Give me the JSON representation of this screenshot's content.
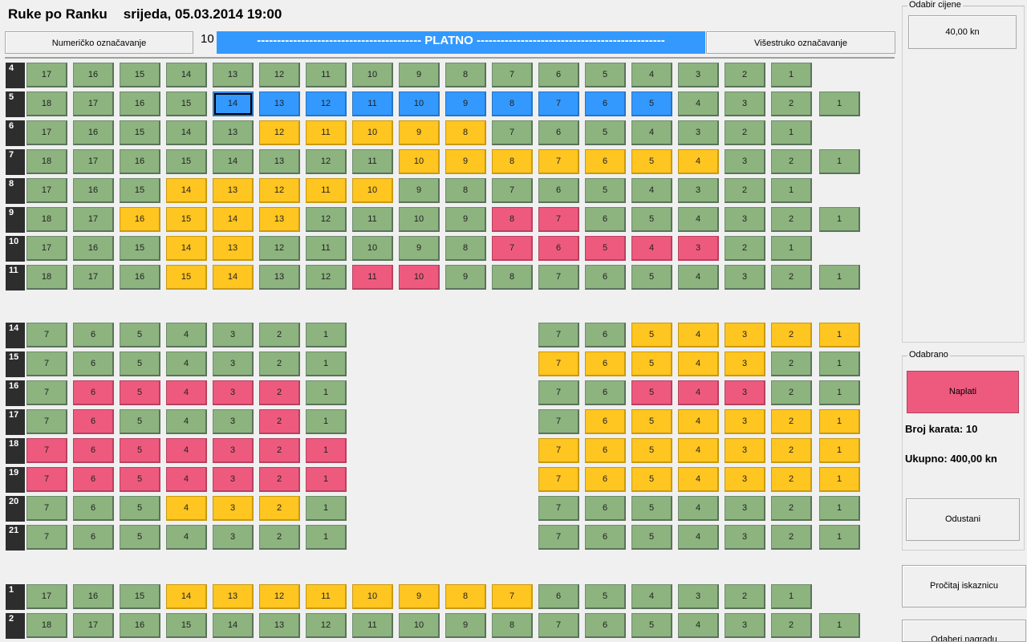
{
  "header": {
    "title": "Ruke po Ranku",
    "datetime": "srijeda, 05.03.2014 19:00"
  },
  "toolbar": {
    "numeric_label": "Numeričko označavanje",
    "counter": "10",
    "screen_label": "----------------------------------------- PLATNO -----------------------------------------------",
    "multi_label": "Višestruko označavanje"
  },
  "hall": {
    "rows": [
      {
        "label": "4",
        "seats": [
          [
            17,
            "free"
          ],
          [
            16,
            "free"
          ],
          [
            15,
            "free"
          ],
          [
            14,
            "free"
          ],
          [
            13,
            "free"
          ],
          [
            12,
            "free"
          ],
          [
            11,
            "free"
          ],
          [
            10,
            "free"
          ],
          [
            9,
            "free"
          ],
          [
            8,
            "free"
          ],
          [
            7,
            "free"
          ],
          [
            6,
            "free"
          ],
          [
            5,
            "free"
          ],
          [
            4,
            "free"
          ],
          [
            3,
            "free"
          ],
          [
            2,
            "free"
          ],
          [
            1,
            "free"
          ]
        ]
      },
      {
        "label": "5",
        "seats": [
          [
            18,
            "free"
          ],
          [
            17,
            "free"
          ],
          [
            16,
            "free"
          ],
          [
            15,
            "free"
          ],
          [
            14,
            "sel-cur"
          ],
          [
            13,
            "sel"
          ],
          [
            12,
            "sel"
          ],
          [
            11,
            "sel"
          ],
          [
            10,
            "sel"
          ],
          [
            9,
            "sel"
          ],
          [
            8,
            "sel"
          ],
          [
            7,
            "sel"
          ],
          [
            6,
            "sel"
          ],
          [
            5,
            "sel"
          ],
          [
            4,
            "free"
          ],
          [
            3,
            "free"
          ],
          [
            2,
            "free"
          ],
          [
            1,
            "free"
          ]
        ]
      },
      {
        "label": "6",
        "seats": [
          [
            17,
            "free"
          ],
          [
            16,
            "free"
          ],
          [
            15,
            "free"
          ],
          [
            14,
            "free"
          ],
          [
            13,
            "free"
          ],
          [
            12,
            "res"
          ],
          [
            11,
            "res"
          ],
          [
            10,
            "res"
          ],
          [
            9,
            "res"
          ],
          [
            8,
            "res"
          ],
          [
            7,
            "free"
          ],
          [
            6,
            "free"
          ],
          [
            5,
            "free"
          ],
          [
            4,
            "free"
          ],
          [
            3,
            "free"
          ],
          [
            2,
            "free"
          ],
          [
            1,
            "free"
          ]
        ]
      },
      {
        "label": "7",
        "seats": [
          [
            18,
            "free"
          ],
          [
            17,
            "free"
          ],
          [
            16,
            "free"
          ],
          [
            15,
            "free"
          ],
          [
            14,
            "free"
          ],
          [
            13,
            "free"
          ],
          [
            12,
            "free"
          ],
          [
            11,
            "free"
          ],
          [
            10,
            "res"
          ],
          [
            9,
            "res"
          ],
          [
            8,
            "res"
          ],
          [
            7,
            "res"
          ],
          [
            6,
            "res"
          ],
          [
            5,
            "res"
          ],
          [
            4,
            "res"
          ],
          [
            3,
            "free"
          ],
          [
            2,
            "free"
          ],
          [
            1,
            "free"
          ]
        ]
      },
      {
        "label": "8",
        "seats": [
          [
            17,
            "free"
          ],
          [
            16,
            "free"
          ],
          [
            15,
            "free"
          ],
          [
            14,
            "res"
          ],
          [
            13,
            "res"
          ],
          [
            12,
            "res"
          ],
          [
            11,
            "res"
          ],
          [
            10,
            "res"
          ],
          [
            9,
            "free"
          ],
          [
            8,
            "free"
          ],
          [
            7,
            "free"
          ],
          [
            6,
            "free"
          ],
          [
            5,
            "free"
          ],
          [
            4,
            "free"
          ],
          [
            3,
            "free"
          ],
          [
            2,
            "free"
          ],
          [
            1,
            "free"
          ]
        ]
      },
      {
        "label": "9",
        "seats": [
          [
            18,
            "free"
          ],
          [
            17,
            "free"
          ],
          [
            16,
            "res"
          ],
          [
            15,
            "res"
          ],
          [
            14,
            "res"
          ],
          [
            13,
            "res"
          ],
          [
            12,
            "free"
          ],
          [
            11,
            "free"
          ],
          [
            10,
            "free"
          ],
          [
            9,
            "free"
          ],
          [
            8,
            "sold"
          ],
          [
            7,
            "sold"
          ],
          [
            6,
            "free"
          ],
          [
            5,
            "free"
          ],
          [
            4,
            "free"
          ],
          [
            3,
            "free"
          ],
          [
            2,
            "free"
          ],
          [
            1,
            "free"
          ]
        ]
      },
      {
        "label": "10",
        "seats": [
          [
            17,
            "free"
          ],
          [
            16,
            "free"
          ],
          [
            15,
            "free"
          ],
          [
            14,
            "res"
          ],
          [
            13,
            "res"
          ],
          [
            12,
            "free"
          ],
          [
            11,
            "free"
          ],
          [
            10,
            "free"
          ],
          [
            9,
            "free"
          ],
          [
            8,
            "free"
          ],
          [
            7,
            "sold"
          ],
          [
            6,
            "sold"
          ],
          [
            5,
            "sold"
          ],
          [
            4,
            "sold"
          ],
          [
            3,
            "sold"
          ],
          [
            2,
            "free"
          ],
          [
            1,
            "free"
          ]
        ]
      },
      {
        "label": "11",
        "seats": [
          [
            18,
            "free"
          ],
          [
            17,
            "free"
          ],
          [
            16,
            "free"
          ],
          [
            15,
            "res"
          ],
          [
            14,
            "res"
          ],
          [
            13,
            "free"
          ],
          [
            12,
            "free"
          ],
          [
            11,
            "sold"
          ],
          [
            10,
            "sold"
          ],
          [
            9,
            "free"
          ],
          [
            8,
            "free"
          ],
          [
            7,
            "free"
          ],
          [
            6,
            "free"
          ],
          [
            5,
            "free"
          ],
          [
            4,
            "free"
          ],
          [
            3,
            "free"
          ],
          [
            2,
            "free"
          ],
          [
            1,
            "free"
          ]
        ]
      },
      {
        "label": "14",
        "left": [
          [
            7,
            "free"
          ],
          [
            6,
            "free"
          ],
          [
            5,
            "free"
          ],
          [
            4,
            "free"
          ],
          [
            3,
            "free"
          ],
          [
            2,
            "free"
          ],
          [
            1,
            "free"
          ]
        ],
        "right": [
          [
            7,
            "free"
          ],
          [
            6,
            "free"
          ],
          [
            5,
            "res"
          ],
          [
            4,
            "res"
          ],
          [
            3,
            "res"
          ],
          [
            2,
            "res"
          ],
          [
            1,
            "res"
          ]
        ]
      },
      {
        "label": "15",
        "left": [
          [
            7,
            "free"
          ],
          [
            6,
            "free"
          ],
          [
            5,
            "free"
          ],
          [
            4,
            "free"
          ],
          [
            3,
            "free"
          ],
          [
            2,
            "free"
          ],
          [
            1,
            "free"
          ]
        ],
        "right": [
          [
            7,
            "res"
          ],
          [
            6,
            "res"
          ],
          [
            5,
            "res"
          ],
          [
            4,
            "res"
          ],
          [
            3,
            "res"
          ],
          [
            2,
            "free"
          ],
          [
            1,
            "free"
          ]
        ]
      },
      {
        "label": "16",
        "left": [
          [
            7,
            "free"
          ],
          [
            6,
            "sold"
          ],
          [
            5,
            "sold"
          ],
          [
            4,
            "sold"
          ],
          [
            3,
            "sold"
          ],
          [
            2,
            "sold"
          ],
          [
            1,
            "free"
          ]
        ],
        "right": [
          [
            7,
            "free"
          ],
          [
            6,
            "free"
          ],
          [
            5,
            "sold"
          ],
          [
            4,
            "sold"
          ],
          [
            3,
            "sold"
          ],
          [
            2,
            "free"
          ],
          [
            1,
            "free"
          ]
        ]
      },
      {
        "label": "17",
        "left": [
          [
            7,
            "free"
          ],
          [
            6,
            "sold"
          ],
          [
            5,
            "free"
          ],
          [
            4,
            "free"
          ],
          [
            3,
            "free"
          ],
          [
            2,
            "sold"
          ],
          [
            1,
            "free"
          ]
        ],
        "right": [
          [
            7,
            "free"
          ],
          [
            6,
            "res"
          ],
          [
            5,
            "res"
          ],
          [
            4,
            "res"
          ],
          [
            3,
            "res"
          ],
          [
            2,
            "res"
          ],
          [
            1,
            "res"
          ]
        ]
      },
      {
        "label": "18",
        "left": [
          [
            7,
            "sold"
          ],
          [
            6,
            "sold"
          ],
          [
            5,
            "sold"
          ],
          [
            4,
            "sold"
          ],
          [
            3,
            "sold"
          ],
          [
            2,
            "sold"
          ],
          [
            1,
            "sold"
          ]
        ],
        "right": [
          [
            7,
            "res"
          ],
          [
            6,
            "res"
          ],
          [
            5,
            "res"
          ],
          [
            4,
            "res"
          ],
          [
            3,
            "res"
          ],
          [
            2,
            "res"
          ],
          [
            1,
            "res"
          ]
        ]
      },
      {
        "label": "19",
        "left": [
          [
            7,
            "sold"
          ],
          [
            6,
            "sold"
          ],
          [
            5,
            "sold"
          ],
          [
            4,
            "sold"
          ],
          [
            3,
            "sold"
          ],
          [
            2,
            "sold"
          ],
          [
            1,
            "sold"
          ]
        ],
        "right": [
          [
            7,
            "res"
          ],
          [
            6,
            "res"
          ],
          [
            5,
            "res"
          ],
          [
            4,
            "res"
          ],
          [
            3,
            "res"
          ],
          [
            2,
            "res"
          ],
          [
            1,
            "res"
          ]
        ]
      },
      {
        "label": "20",
        "left": [
          [
            7,
            "free"
          ],
          [
            6,
            "free"
          ],
          [
            5,
            "free"
          ],
          [
            4,
            "res"
          ],
          [
            3,
            "res"
          ],
          [
            2,
            "res"
          ],
          [
            1,
            "free"
          ]
        ],
        "right": [
          [
            7,
            "free"
          ],
          [
            6,
            "free"
          ],
          [
            5,
            "free"
          ],
          [
            4,
            "free"
          ],
          [
            3,
            "free"
          ],
          [
            2,
            "free"
          ],
          [
            1,
            "free"
          ]
        ]
      },
      {
        "label": "21",
        "left": [
          [
            7,
            "free"
          ],
          [
            6,
            "free"
          ],
          [
            5,
            "free"
          ],
          [
            4,
            "free"
          ],
          [
            3,
            "free"
          ],
          [
            2,
            "free"
          ],
          [
            1,
            "free"
          ]
        ],
        "right": [
          [
            7,
            "free"
          ],
          [
            6,
            "free"
          ],
          [
            5,
            "free"
          ],
          [
            4,
            "free"
          ],
          [
            3,
            "free"
          ],
          [
            2,
            "free"
          ],
          [
            1,
            "free"
          ]
        ]
      },
      {
        "label": "1",
        "seats": [
          [
            17,
            "free"
          ],
          [
            16,
            "free"
          ],
          [
            15,
            "free"
          ],
          [
            14,
            "res"
          ],
          [
            13,
            "res"
          ],
          [
            12,
            "res"
          ],
          [
            11,
            "res"
          ],
          [
            10,
            "res"
          ],
          [
            9,
            "res"
          ],
          [
            8,
            "res"
          ],
          [
            7,
            "res"
          ],
          [
            6,
            "free"
          ],
          [
            5,
            "free"
          ],
          [
            4,
            "free"
          ],
          [
            3,
            "free"
          ],
          [
            2,
            "free"
          ],
          [
            1,
            "free"
          ]
        ]
      },
      {
        "label": "2",
        "seats": [
          [
            18,
            "free"
          ],
          [
            17,
            "free"
          ],
          [
            16,
            "free"
          ],
          [
            15,
            "free"
          ],
          [
            14,
            "free"
          ],
          [
            13,
            "free"
          ],
          [
            12,
            "free"
          ],
          [
            11,
            "free"
          ],
          [
            10,
            "free"
          ],
          [
            9,
            "free"
          ],
          [
            8,
            "free"
          ],
          [
            7,
            "free"
          ],
          [
            6,
            "free"
          ],
          [
            5,
            "free"
          ],
          [
            4,
            "free"
          ],
          [
            3,
            "free"
          ],
          [
            2,
            "free"
          ],
          [
            1,
            "free"
          ]
        ]
      }
    ]
  },
  "colors": {
    "free": "#8db37f",
    "reserved": "#ffc520",
    "sold": "#ee5a7e",
    "selected": "#3399ff"
  },
  "sidebar": {
    "price_group_label": "Odabir cijene",
    "price_value": "40,00 kn",
    "selected_group_label": "Odabrano",
    "pay_button": "Naplati",
    "ticket_count": "Broj karata: 10",
    "total": "Ukupno: 400,00 kn",
    "cancel_button": "Odustani",
    "read_card_button": "Pročitaj iskaznicu",
    "reward_button": "Odaberi nagradu"
  }
}
